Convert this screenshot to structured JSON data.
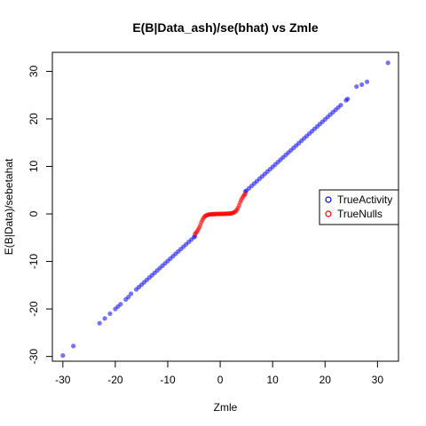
{
  "chart_data": {
    "type": "scatter",
    "title": "E(B|Data_ash)/se(bhat) vs Zmle",
    "xlabel": "Zmle",
    "ylabel": "E(B|Data)/sebetahat",
    "xlim": [
      -32,
      34
    ],
    "ylim": [
      -31,
      34
    ],
    "x_ticks": [
      -30,
      -20,
      -10,
      0,
      10,
      20,
      30
    ],
    "y_ticks": [
      -30,
      -20,
      -10,
      0,
      10,
      20,
      30
    ],
    "x_tick_labels": [
      "-30",
      "-20",
      "-10",
      "0",
      "10",
      "20",
      "30"
    ],
    "y_tick_labels": [
      "-30",
      "-20",
      "-10",
      "0",
      "10",
      "20",
      "30"
    ],
    "grid": false,
    "legend_position": "right",
    "series": [
      {
        "name": "TrueActivity",
        "color": "#0000ff",
        "x": [
          -30,
          -28,
          -23,
          -22,
          -21,
          -20,
          -19.5,
          -19,
          -18,
          -17.5,
          -17,
          -16,
          -15.5,
          -15,
          -14.5,
          -14,
          -13.5,
          -13,
          -12.5,
          -12,
          -11.5,
          -11,
          -10.5,
          -10,
          -9.5,
          -9,
          -8.5,
          -8,
          -7.5,
          -7,
          -6.5,
          -6,
          -5.5,
          -5,
          -4.8,
          4.8,
          5,
          5.5,
          6,
          6.5,
          7,
          7.5,
          8,
          8.5,
          9,
          9.5,
          10,
          10.5,
          11,
          11.5,
          12,
          12.5,
          13,
          13.5,
          14,
          14.5,
          15,
          15.5,
          16,
          16.5,
          17,
          17.5,
          18,
          18.5,
          19,
          19.5,
          20,
          20.5,
          21,
          21.5,
          22,
          22.5,
          23,
          24,
          24.3,
          26,
          27,
          28,
          32
        ],
        "y": [
          -29.8,
          -27.8,
          -23,
          -22,
          -21,
          -20,
          -19.5,
          -19,
          -18,
          -17.5,
          -16.8,
          -15.9,
          -15.4,
          -14.9,
          -14.4,
          -13.9,
          -13.4,
          -12.9,
          -12.4,
          -11.9,
          -11.4,
          -10.9,
          -10.4,
          -9.9,
          -9.4,
          -8.9,
          -8.4,
          -7.9,
          -7.4,
          -6.9,
          -6.4,
          -5.9,
          -5.4,
          -4.9,
          -4.7,
          4.7,
          4.9,
          5.4,
          5.9,
          6.4,
          6.9,
          7.4,
          7.9,
          8.4,
          8.9,
          9.4,
          9.9,
          10.4,
          10.9,
          11.4,
          11.9,
          12.4,
          12.9,
          13.4,
          13.9,
          14.4,
          14.9,
          15.4,
          15.9,
          16.4,
          16.9,
          17.4,
          17.9,
          18.4,
          18.9,
          19.4,
          19.9,
          20.4,
          20.9,
          21.4,
          21.9,
          22.4,
          22.9,
          23.9,
          24.2,
          26.8,
          27.2,
          27.8,
          31.8
        ]
      },
      {
        "name": "TrueNulls",
        "color": "#ff0000",
        "x": [
          -4.8,
          -4.6,
          -4.4,
          -4.2,
          -4.0,
          -3.8,
          -3.6,
          -3.4,
          -3.2,
          -3.0,
          -2.8,
          -2.6,
          -2.4,
          -2.2,
          -2.0,
          -1.8,
          -1.6,
          -1.4,
          -1.2,
          -1.0,
          -0.8,
          -0.6,
          -0.4,
          -0.2,
          0,
          0.2,
          0.4,
          0.6,
          0.8,
          1.0,
          1.2,
          1.4,
          1.6,
          1.8,
          2.0,
          2.2,
          2.4,
          2.6,
          2.8,
          3.0,
          3.2,
          3.4,
          3.6,
          3.8,
          4.0,
          4.2,
          4.4,
          4.6,
          4.8
        ],
        "y": [
          -4.2,
          -4.0,
          -3.7,
          -3.3,
          -2.9,
          -2.4,
          -1.8,
          -1.3,
          -0.9,
          -0.6,
          -0.4,
          -0.3,
          -0.2,
          -0.15,
          -0.1,
          -0.08,
          -0.06,
          -0.05,
          -0.04,
          -0.03,
          -0.02,
          -0.01,
          -0.01,
          0,
          0,
          0,
          0.01,
          0.01,
          0.02,
          0.03,
          0.04,
          0.05,
          0.06,
          0.08,
          0.1,
          0.15,
          0.2,
          0.3,
          0.4,
          0.6,
          0.9,
          1.3,
          1.8,
          2.4,
          2.9,
          3.3,
          3.7,
          4.0,
          4.2
        ]
      }
    ],
    "legend": [
      {
        "label": "TrueActivity",
        "color": "#0000ff"
      },
      {
        "label": "TrueNulls",
        "color": "#ff0000"
      }
    ]
  }
}
